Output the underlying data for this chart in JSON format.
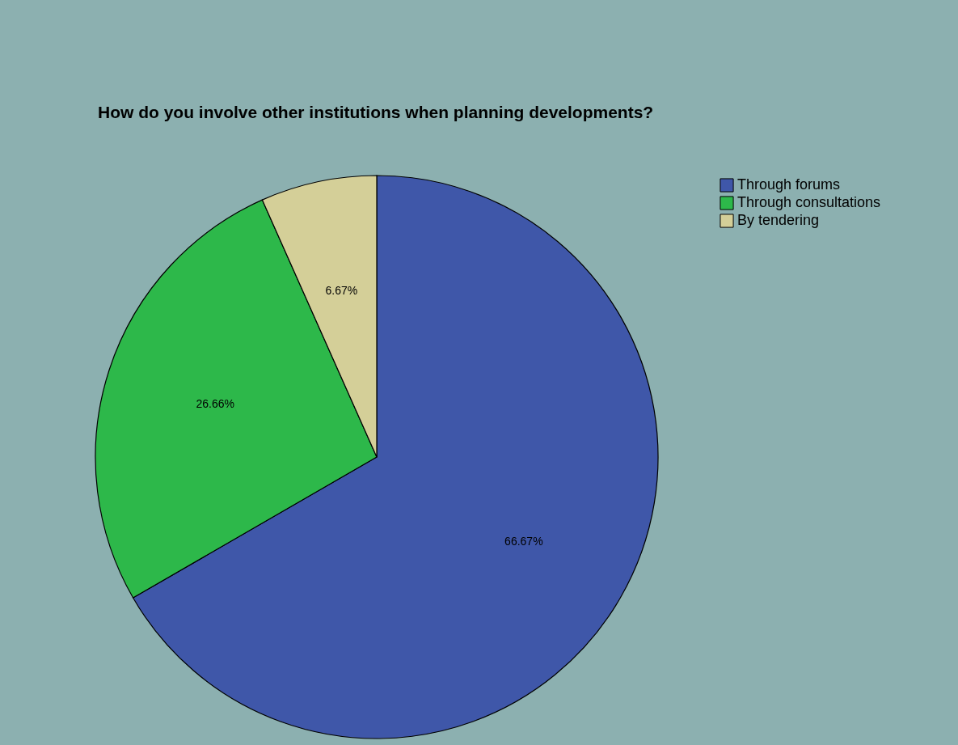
{
  "chart_data": {
    "type": "pie",
    "title": "How do you involve other institutions when planning developments?",
    "categories": [
      "Through forums",
      "Through consultations",
      "By tendering"
    ],
    "values": [
      66.67,
      26.66,
      6.67
    ],
    "colors": [
      "#3f57a9",
      "#2db84a",
      "#d4cf98"
    ],
    "value_labels": [
      "66.67%",
      "26.66%",
      "6.67%"
    ],
    "legend": "top right"
  }
}
